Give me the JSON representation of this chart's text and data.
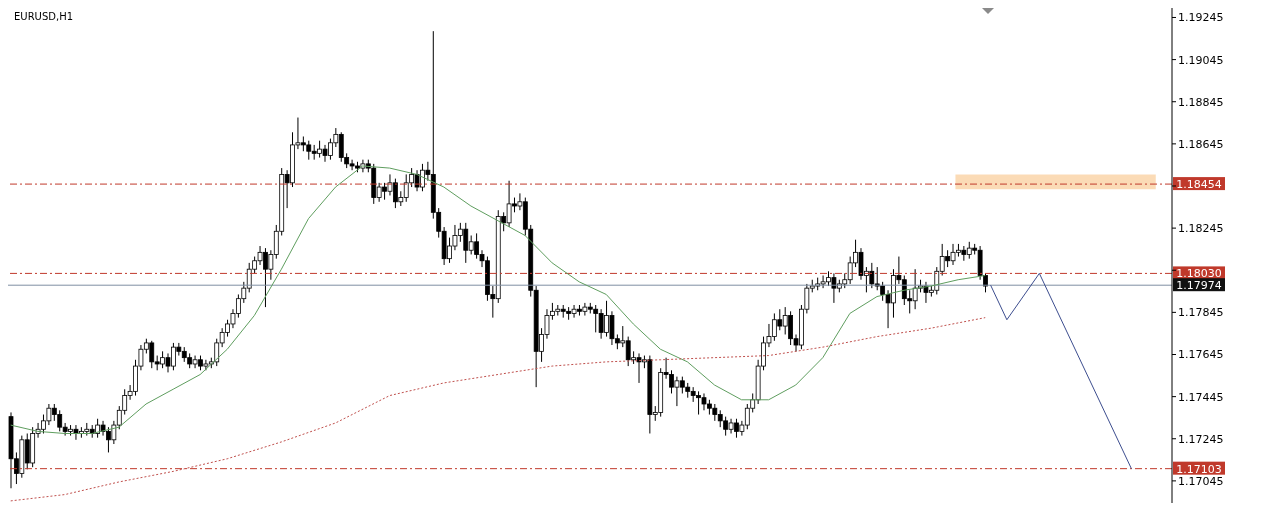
{
  "chart_data": {
    "type": "candlestick",
    "title": "EURUSD,H1",
    "categories": [
      null,
      null,
      null,
      null,
      null,
      null,
      null,
      null,
      null,
      null,
      null,
      null,
      null,
      null,
      null,
      null,
      null,
      null,
      null,
      null,
      null,
      null,
      null,
      null,
      null,
      null,
      null,
      null,
      null,
      null,
      null,
      null,
      null,
      null,
      null,
      null,
      null,
      null,
      null,
      null,
      null,
      null,
      null,
      null,
      null,
      null,
      null,
      null,
      null,
      null,
      null,
      null,
      null,
      null,
      null,
      null,
      null,
      null,
      null,
      null,
      null,
      null,
      null,
      null,
      null,
      null,
      null,
      null,
      null,
      null,
      null,
      null,
      null,
      null,
      null,
      null,
      null,
      null,
      null,
      null,
      null,
      null,
      null,
      null,
      null,
      null,
      null,
      null,
      null,
      null,
      null,
      null,
      null,
      null,
      null,
      null,
      null,
      null,
      null,
      null,
      null,
      null,
      null,
      null,
      null,
      null,
      null,
      null,
      null,
      null,
      null,
      null,
      null,
      null,
      null,
      null,
      null,
      null,
      null,
      null,
      null,
      null,
      null,
      null,
      null,
      null,
      null,
      null,
      null,
      null,
      null,
      null,
      null,
      null,
      null,
      null,
      null,
      null,
      null,
      null,
      null,
      null,
      null,
      null,
      null,
      null,
      null,
      null,
      null,
      null,
      null,
      null,
      null,
      null,
      null,
      null,
      null,
      null,
      null,
      null,
      null,
      null,
      null,
      null,
      null,
      null,
      null,
      null,
      null,
      null,
      null,
      null,
      null,
      null,
      null,
      null,
      null,
      null,
      null,
      null,
      null,
      null,
      null,
      null,
      null,
      null,
      null,
      null,
      null,
      null,
      null,
      null,
      null,
      null,
      null,
      null,
      null,
      null,
      null,
      null,
      null,
      null,
      null,
      null,
      null,
      null,
      null,
      null,
      null,
      null,
      null,
      null,
      null,
      null,
      null
    ],
    "ohlc": [
      [
        1.1735,
        1.1737,
        1.1701,
        1.1715
      ],
      [
        1.1715,
        1.1718,
        1.1703,
        1.1708
      ],
      [
        1.1708,
        1.1726,
        1.1706,
        1.1724
      ],
      [
        1.1724,
        1.1727,
        1.171,
        1.1713
      ],
      [
        1.1713,
        1.173,
        1.1711,
        1.1727
      ],
      [
        1.1727,
        1.1732,
        1.1725,
        1.1729
      ],
      [
        1.1729,
        1.1736,
        1.1727,
        1.1733
      ],
      [
        1.1733,
        1.1741,
        1.1731,
        1.1739
      ],
      [
        1.1739,
        1.1741,
        1.1733,
        1.1736
      ],
      [
        1.1736,
        1.1738,
        1.1728,
        1.173
      ],
      [
        1.173,
        1.1732,
        1.1726,
        1.1728
      ],
      [
        1.1728,
        1.1731,
        1.1726,
        1.1729
      ],
      [
        1.1729,
        1.1731,
        1.1724,
        1.1727
      ],
      [
        1.1727,
        1.173,
        1.1725,
        1.1728
      ],
      [
        1.1728,
        1.1732,
        1.1726,
        1.1729
      ],
      [
        1.1729,
        1.1731,
        1.1725,
        1.1727
      ],
      [
        1.1727,
        1.1734,
        1.1725,
        1.1731
      ],
      [
        1.1731,
        1.1733,
        1.1726,
        1.1728
      ],
      [
        1.1728,
        1.173,
        1.1718,
        1.1724
      ],
      [
        1.1724,
        1.1733,
        1.1722,
        1.1731
      ],
      [
        1.1731,
        1.174,
        1.1729,
        1.1738
      ],
      [
        1.1738,
        1.1748,
        1.1736,
        1.1745
      ],
      [
        1.1745,
        1.175,
        1.1743,
        1.1747
      ],
      [
        1.1747,
        1.1762,
        1.1745,
        1.1759
      ],
      [
        1.1759,
        1.1769,
        1.1757,
        1.1767
      ],
      [
        1.1767,
        1.1772,
        1.1765,
        1.177
      ],
      [
        1.177,
        1.1771,
        1.1758,
        1.1761
      ],
      [
        1.1761,
        1.1764,
        1.1757,
        1.176
      ],
      [
        1.176,
        1.1766,
        1.1758,
        1.1763
      ],
      [
        1.1763,
        1.1765,
        1.1756,
        1.1759
      ],
      [
        1.1759,
        1.177,
        1.1757,
        1.1768
      ],
      [
        1.1768,
        1.177,
        1.1764,
        1.1766
      ],
      [
        1.1766,
        1.1768,
        1.1761,
        1.1763
      ],
      [
        1.1763,
        1.1765,
        1.1758,
        1.176
      ],
      [
        1.176,
        1.1764,
        1.1758,
        1.1762
      ],
      [
        1.1762,
        1.1764,
        1.1757,
        1.1759
      ],
      [
        1.1759,
        1.1762,
        1.1757,
        1.176
      ],
      [
        1.176,
        1.1763,
        1.1758,
        1.1761
      ],
      [
        1.1761,
        1.1772,
        1.1759,
        1.177
      ],
      [
        1.177,
        1.1777,
        1.1768,
        1.1775
      ],
      [
        1.1775,
        1.1781,
        1.1773,
        1.1779
      ],
      [
        1.1779,
        1.1786,
        1.1777,
        1.1784
      ],
      [
        1.1784,
        1.1793,
        1.1782,
        1.1791
      ],
      [
        1.1791,
        1.1799,
        1.1789,
        1.1796
      ],
      [
        1.1796,
        1.1808,
        1.1794,
        1.1805
      ],
      [
        1.1805,
        1.1811,
        1.1803,
        1.1809
      ],
      [
        1.1809,
        1.1816,
        1.1807,
        1.1813
      ],
      [
        1.1813,
        1.1815,
        1.1787,
        1.1805
      ],
      [
        1.1805,
        1.1814,
        1.18,
        1.1812
      ],
      [
        1.1812,
        1.1826,
        1.181,
        1.1823
      ],
      [
        1.1823,
        1.1853,
        1.1821,
        1.185
      ],
      [
        1.185,
        1.1852,
        1.1834,
        1.1846
      ],
      [
        1.1846,
        1.187,
        1.1844,
        1.1864
      ],
      [
        1.1864,
        1.1877,
        1.1862,
        1.1865
      ],
      [
        1.1865,
        1.1868,
        1.1861,
        1.1864
      ],
      [
        1.1864,
        1.1866,
        1.1857,
        1.1861
      ],
      [
        1.1861,
        1.1864,
        1.1857,
        1.186
      ],
      [
        1.186,
        1.1866,
        1.1858,
        1.1862
      ],
      [
        1.1862,
        1.1864,
        1.1856,
        1.1859
      ],
      [
        1.1859,
        1.1867,
        1.1857,
        1.1865
      ],
      [
        1.1865,
        1.1872,
        1.1863,
        1.1869
      ],
      [
        1.1869,
        1.187,
        1.1856,
        1.1858
      ],
      [
        1.1858,
        1.186,
        1.1853,
        1.1855
      ],
      [
        1.1855,
        1.1857,
        1.1852,
        1.1854
      ],
      [
        1.1854,
        1.1856,
        1.1851,
        1.1853
      ],
      [
        1.1853,
        1.1857,
        1.1851,
        1.1855
      ],
      [
        1.1855,
        1.1857,
        1.1851,
        1.1853
      ],
      [
        1.1853,
        1.1855,
        1.1836,
        1.1839
      ],
      [
        1.1839,
        1.1846,
        1.1837,
        1.1844
      ],
      [
        1.1844,
        1.1846,
        1.1838,
        1.1842
      ],
      [
        1.1842,
        1.185,
        1.184,
        1.1846
      ],
      [
        1.1846,
        1.1848,
        1.1834,
        1.1837
      ],
      [
        1.1837,
        1.1842,
        1.1835,
        1.1839
      ],
      [
        1.1839,
        1.185,
        1.1837,
        1.1846
      ],
      [
        1.1846,
        1.1853,
        1.1844,
        1.185
      ],
      [
        1.185,
        1.1852,
        1.1842,
        1.1844
      ],
      [
        1.1844,
        1.1855,
        1.1842,
        1.1852
      ],
      [
        1.1852,
        1.1856,
        1.1847,
        1.185
      ],
      [
        1.185,
        1.1918,
        1.1829,
        1.1832
      ],
      [
        1.1832,
        1.1834,
        1.182,
        1.1823
      ],
      [
        1.1823,
        1.1825,
        1.1807,
        1.181
      ],
      [
        1.181,
        1.182,
        1.1808,
        1.1816
      ],
      [
        1.1816,
        1.1826,
        1.1814,
        1.1821
      ],
      [
        1.1821,
        1.1827,
        1.1818,
        1.1824
      ],
      [
        1.1824,
        1.1827,
        1.1808,
        1.1814
      ],
      [
        1.1814,
        1.1821,
        1.1812,
        1.1818
      ],
      [
        1.1818,
        1.1822,
        1.181,
        1.1812
      ],
      [
        1.1812,
        1.1814,
        1.1806,
        1.1809
      ],
      [
        1.1809,
        1.1811,
        1.179,
        1.1793
      ],
      [
        1.1793,
        1.1797,
        1.1782,
        1.1791
      ],
      [
        1.1791,
        1.1833,
        1.1789,
        1.183
      ],
      [
        1.183,
        1.1832,
        1.1823,
        1.1827
      ],
      [
        1.1827,
        1.1847,
        1.1825,
        1.1836
      ],
      [
        1.1836,
        1.1839,
        1.1832,
        1.1835
      ],
      [
        1.1835,
        1.1841,
        1.1833,
        1.1837
      ],
      [
        1.1837,
        1.1839,
        1.1821,
        1.1824
      ],
      [
        1.1824,
        1.1826,
        1.1792,
        1.1795
      ],
      [
        1.1795,
        1.1797,
        1.1749,
        1.1766
      ],
      [
        1.1766,
        1.1777,
        1.1761,
        1.1774
      ],
      [
        1.1774,
        1.1786,
        1.1772,
        1.1783
      ],
      [
        1.1783,
        1.1789,
        1.1781,
        1.1785
      ],
      [
        1.1785,
        1.1788,
        1.1783,
        1.1786
      ],
      [
        1.1786,
        1.1788,
        1.1782,
        1.1785
      ],
      [
        1.1785,
        1.1787,
        1.1781,
        1.1784
      ],
      [
        1.1784,
        1.1788,
        1.1782,
        1.1786
      ],
      [
        1.1786,
        1.1788,
        1.1783,
        1.1785
      ],
      [
        1.1785,
        1.1789,
        1.1783,
        1.1787
      ],
      [
        1.1787,
        1.1789,
        1.1784,
        1.1786
      ],
      [
        1.1786,
        1.1788,
        1.1775,
        1.1784
      ],
      [
        1.1784,
        1.1786,
        1.1772,
        1.1775
      ],
      [
        1.1775,
        1.179,
        1.1773,
        1.1783
      ],
      [
        1.1783,
        1.1785,
        1.1769,
        1.1772
      ],
      [
        1.1772,
        1.1774,
        1.1767,
        1.177
      ],
      [
        1.177,
        1.1778,
        1.1768,
        1.1771
      ],
      [
        1.1771,
        1.1773,
        1.1759,
        1.1762
      ],
      [
        1.1762,
        1.1766,
        1.176,
        1.1763
      ],
      [
        1.1763,
        1.1765,
        1.1751,
        1.1761
      ],
      [
        1.1761,
        1.1764,
        1.1758,
        1.1762
      ],
      [
        1.1762,
        1.1764,
        1.1727,
        1.1736
      ],
      [
        1.1736,
        1.174,
        1.1733,
        1.1737
      ],
      [
        1.1737,
        1.1758,
        1.1735,
        1.1756
      ],
      [
        1.1756,
        1.1763,
        1.1753,
        1.1755
      ],
      [
        1.1755,
        1.1757,
        1.1746,
        1.1749
      ],
      [
        1.1749,
        1.1754,
        1.174,
        1.1752
      ],
      [
        1.1752,
        1.1754,
        1.1746,
        1.1749
      ],
      [
        1.1749,
        1.1751,
        1.1744,
        1.1747
      ],
      [
        1.1747,
        1.1749,
        1.1742,
        1.1745
      ],
      [
        1.1745,
        1.1747,
        1.1736,
        1.1744
      ],
      [
        1.1744,
        1.1746,
        1.1738,
        1.1741
      ],
      [
        1.1741,
        1.1743,
        1.1736,
        1.1739
      ],
      [
        1.1739,
        1.1741,
        1.1733,
        1.1736
      ],
      [
        1.1736,
        1.1738,
        1.173,
        1.1733
      ],
      [
        1.1733,
        1.1735,
        1.1726,
        1.1729
      ],
      [
        1.1729,
        1.1734,
        1.1727,
        1.1732
      ],
      [
        1.1732,
        1.1734,
        1.1725,
        1.1728
      ],
      [
        1.1728,
        1.1733,
        1.1726,
        1.1731
      ],
      [
        1.1731,
        1.1741,
        1.1729,
        1.1739
      ],
      [
        1.1739,
        1.1746,
        1.1737,
        1.1743
      ],
      [
        1.1743,
        1.1762,
        1.1741,
        1.1759
      ],
      [
        1.1759,
        1.1773,
        1.1757,
        1.177
      ],
      [
        1.177,
        1.1779,
        1.1768,
        1.1773
      ],
      [
        1.1773,
        1.1784,
        1.1771,
        1.1781
      ],
      [
        1.1781,
        1.1786,
        1.1776,
        1.1778
      ],
      [
        1.1778,
        1.1787,
        1.1774,
        1.1783
      ],
      [
        1.1783,
        1.1785,
        1.1769,
        1.1772
      ],
      [
        1.1772,
        1.1774,
        1.1766,
        1.1769
      ],
      [
        1.1769,
        1.1788,
        1.1767,
        1.1786
      ],
      [
        1.1786,
        1.1798,
        1.1784,
        1.1796
      ],
      [
        1.1796,
        1.18,
        1.1794,
        1.1797
      ],
      [
        1.1797,
        1.1801,
        1.1795,
        1.1798
      ],
      [
        1.1798,
        1.1802,
        1.1796,
        1.1799
      ],
      [
        1.1799,
        1.1804,
        1.1797,
        1.1801
      ],
      [
        1.1801,
        1.1803,
        1.1789,
        1.1796
      ],
      [
        1.1796,
        1.18,
        1.1794,
        1.1798
      ],
      [
        1.1798,
        1.1803,
        1.1796,
        1.18
      ],
      [
        1.18,
        1.1811,
        1.1798,
        1.1808
      ],
      [
        1.1808,
        1.1819,
        1.1806,
        1.1813
      ],
      [
        1.1813,
        1.1815,
        1.18,
        1.1802
      ],
      [
        1.1802,
        1.1806,
        1.1794,
        1.1804
      ],
      [
        1.1804,
        1.1808,
        1.1796,
        1.1798
      ],
      [
        1.1798,
        1.1806,
        1.1795,
        1.1797
      ],
      [
        1.1797,
        1.1799,
        1.179,
        1.1793
      ],
      [
        1.1793,
        1.1795,
        1.1777,
        1.1789
      ],
      [
        1.1789,
        1.1805,
        1.1782,
        1.1802
      ],
      [
        1.1802,
        1.1811,
        1.1798,
        1.18
      ],
      [
        1.18,
        1.1802,
        1.1788,
        1.1791
      ],
      [
        1.1791,
        1.1795,
        1.1784,
        1.179
      ],
      [
        1.179,
        1.1805,
        1.1786,
        1.1796
      ],
      [
        1.1796,
        1.18,
        1.1794,
        1.1797
      ],
      [
        1.1797,
        1.1799,
        1.1789,
        1.1794
      ],
      [
        1.1794,
        1.1797,
        1.1792,
        1.1795
      ],
      [
        1.1795,
        1.1806,
        1.1793,
        1.1804
      ],
      [
        1.1804,
        1.1817,
        1.1802,
        1.1811
      ],
      [
        1.1811,
        1.1814,
        1.1806,
        1.1809
      ],
      [
        1.1809,
        1.1817,
        1.1807,
        1.1813
      ],
      [
        1.1813,
        1.1817,
        1.1811,
        1.1814
      ],
      [
        1.1814,
        1.1816,
        1.1809,
        1.1812
      ],
      [
        1.1812,
        1.1818,
        1.181,
        1.1815
      ],
      [
        1.1815,
        1.1817,
        1.1812,
        1.1814
      ],
      [
        1.1814,
        1.1816,
        1.18,
        1.1802
      ],
      [
        1.1802,
        1.1803,
        1.1794,
        1.1797
      ],
      null,
      null,
      null,
      null,
      null,
      null,
      null,
      null,
      null,
      null,
      null,
      null,
      null,
      null,
      null,
      null,
      null,
      null,
      null,
      null,
      null,
      null,
      null,
      null,
      null,
      null,
      null,
      null,
      null,
      null,
      null,
      null,
      null,
      null
    ],
    "series": [
      {
        "type": "line",
        "color": "#5f9e5f",
        "values": [
          1.1731,
          null,
          null,
          null,
          null,
          1.1728,
          null,
          null,
          null,
          null,
          1.1727,
          null,
          null,
          null,
          null,
          1.1727,
          null,
          null,
          null,
          null,
          1.173,
          null,
          null,
          null,
          null,
          1.1741,
          null,
          null,
          null,
          null,
          1.1748,
          null,
          null,
          null,
          null,
          1.1755,
          null,
          null,
          null,
          null,
          1.1767,
          null,
          null,
          null,
          null,
          1.1783,
          null,
          null,
          null,
          null,
          1.1805,
          null,
          null,
          null,
          null,
          1.1829,
          null,
          null,
          null,
          null,
          1.1844,
          null,
          null,
          null,
          null,
          1.1854,
          null,
          null,
          null,
          null,
          1.1853,
          null,
          null,
          null,
          null,
          1.185,
          null,
          null,
          null,
          null,
          1.1844,
          null,
          null,
          null,
          null,
          1.1835,
          null,
          null,
          null,
          null,
          1.1828,
          null,
          null,
          null,
          null,
          1.1821,
          null,
          null,
          null,
          null,
          1.1808,
          null,
          null,
          null,
          null,
          1.1799,
          null,
          null,
          null,
          null,
          1.1793,
          null,
          null,
          null,
          null,
          1.1779,
          null,
          null,
          null,
          null,
          1.1767,
          null,
          null,
          null,
          null,
          1.1761,
          null,
          null,
          null,
          null,
          1.175,
          null,
          null,
          null,
          null,
          1.1743,
          null,
          null,
          null,
          null,
          1.1743,
          null,
          null,
          null,
          null,
          1.175,
          null,
          null,
          null,
          null,
          1.1763,
          null,
          null,
          null,
          null,
          1.1784,
          null,
          null,
          null,
          null,
          1.1792,
          null,
          null,
          null,
          null,
          1.1795,
          null,
          null,
          null,
          null,
          1.1797,
          null,
          null,
          null,
          null,
          1.18,
          null,
          null,
          null,
          null,
          1.1802,
          null,
          null,
          null,
          null,
          null,
          null,
          null,
          null,
          null,
          null,
          null,
          null,
          null,
          null,
          null,
          null,
          null,
          null,
          null,
          null,
          null,
          null,
          null,
          null,
          null,
          null,
          null,
          null,
          null,
          null,
          null,
          null,
          null,
          null
        ]
      },
      {
        "type": "line",
        "color": "#c0504d",
        "line_style": "dotted",
        "values": [
          1.1695,
          null,
          null,
          null,
          null,
          null,
          null,
          null,
          null,
          null,
          1.1698,
          null,
          null,
          null,
          null,
          null,
          null,
          null,
          null,
          null,
          1.1704,
          null,
          null,
          null,
          null,
          null,
          null,
          null,
          null,
          null,
          1.1709,
          null,
          null,
          null,
          null,
          null,
          null,
          null,
          null,
          null,
          1.1715,
          null,
          null,
          null,
          null,
          null,
          null,
          null,
          null,
          null,
          1.1723,
          null,
          null,
          null,
          null,
          null,
          null,
          null,
          null,
          null,
          1.1732,
          null,
          null,
          null,
          null,
          null,
          null,
          null,
          null,
          null,
          1.1745,
          null,
          null,
          null,
          null,
          null,
          null,
          null,
          null,
          null,
          1.1751,
          null,
          null,
          null,
          null,
          null,
          null,
          null,
          null,
          null,
          1.1755,
          null,
          null,
          null,
          null,
          null,
          null,
          null,
          null,
          null,
          1.1759,
          null,
          null,
          null,
          null,
          null,
          null,
          null,
          null,
          null,
          1.1761,
          null,
          null,
          null,
          null,
          null,
          null,
          null,
          null,
          null,
          1.1762,
          null,
          null,
          null,
          null,
          null,
          null,
          null,
          null,
          null,
          1.1763,
          null,
          null,
          null,
          null,
          null,
          null,
          null,
          null,
          null,
          1.1764,
          null,
          null,
          null,
          null,
          null,
          null,
          null,
          null,
          null,
          1.1768,
          null,
          null,
          null,
          null,
          null,
          null,
          null,
          null,
          null,
          1.1773,
          null,
          null,
          null,
          null,
          null,
          null,
          null,
          null,
          null,
          1.1777,
          null,
          null,
          null,
          null,
          null,
          null,
          null,
          null,
          null,
          1.1782,
          null,
          null,
          null,
          null,
          null,
          null,
          null,
          null,
          null,
          null,
          null,
          null,
          null,
          null,
          null,
          null,
          null,
          null,
          null,
          null,
          null,
          null,
          null,
          null,
          null,
          null,
          null,
          null,
          null,
          null,
          null,
          null,
          null,
          null
        ]
      },
      {
        "type": "line",
        "color": "#3d4e8f",
        "values": [
          null,
          null,
          null,
          null,
          null,
          null,
          null,
          null,
          null,
          null,
          null,
          null,
          null,
          null,
          null,
          null,
          null,
          null,
          null,
          null,
          null,
          null,
          null,
          null,
          null,
          null,
          null,
          null,
          null,
          null,
          null,
          null,
          null,
          null,
          null,
          null,
          null,
          null,
          null,
          null,
          null,
          null,
          null,
          null,
          null,
          null,
          null,
          null,
          null,
          null,
          null,
          null,
          null,
          null,
          null,
          null,
          null,
          null,
          null,
          null,
          null,
          null,
          null,
          null,
          null,
          null,
          null,
          null,
          null,
          null,
          null,
          null,
          null,
          null,
          null,
          null,
          null,
          null,
          null,
          null,
          null,
          null,
          null,
          null,
          null,
          null,
          null,
          null,
          null,
          null,
          null,
          null,
          null,
          null,
          null,
          null,
          null,
          null,
          null,
          null,
          null,
          null,
          null,
          null,
          null,
          null,
          null,
          null,
          null,
          null,
          null,
          null,
          null,
          null,
          null,
          null,
          null,
          null,
          null,
          null,
          null,
          null,
          null,
          null,
          null,
          null,
          null,
          null,
          null,
          null,
          null,
          null,
          null,
          null,
          null,
          null,
          null,
          null,
          null,
          null,
          null,
          null,
          null,
          null,
          null,
          null,
          null,
          null,
          null,
          null,
          null,
          null,
          null,
          null,
          null,
          null,
          null,
          null,
          null,
          null,
          null,
          null,
          null,
          null,
          null,
          null,
          null,
          null,
          null,
          null,
          null,
          null,
          null,
          null,
          null,
          null,
          null,
          null,
          null,
          null,
          null,
          1.17974,
          null,
          null,
          1.1781,
          null,
          null,
          null,
          null,
          null,
          1.1803,
          null,
          null,
          null,
          null,
          null,
          null,
          null,
          null,
          null,
          null,
          null,
          null,
          null,
          null,
          null,
          null,
          1.17103,
          null,
          null,
          null,
          null,
          null,
          null,
          null
        ]
      }
    ],
    "ylim": [
      1.1694,
      1.1929
    ],
    "yticks": [
      1.19245,
      1.19045,
      1.18845,
      1.18645,
      {
        "value": 1.18445,
        "label": null
      },
      1.18245,
      {
        "value": 1.18045,
        "label": null
      },
      1.17845,
      1.17645,
      1.17445,
      1.17245,
      1.17045
    ],
    "tick_labels": "y",
    "ref_lines": [
      {
        "axis": "y",
        "value": 1.18454,
        "label": "1.18454",
        "color": "#c0392b",
        "line_style": "dashed"
      },
      {
        "axis": "y",
        "value": 1.1803,
        "label": "1.18030",
        "color": "#c0392b",
        "line_style": "dashed"
      },
      {
        "axis": "y",
        "value": 1.17974,
        "label": "1.17974",
        "color": "#7f8fa3",
        "line_style": "solid"
      },
      {
        "axis": "y",
        "value": 1.17103,
        "label": "1.17103",
        "color": "#c0392b",
        "line_style": "dashed"
      }
    ],
    "bands": [
      {
        "axis": "y",
        "from": 1.1843,
        "to": 1.185,
        "color": "#fbd7ae"
      }
    ]
  }
}
